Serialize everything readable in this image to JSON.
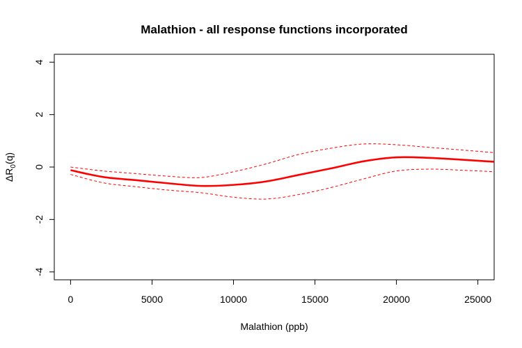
{
  "chart_data": {
    "type": "line",
    "title": "Malathion - all response functions incorporated",
    "xlabel": "Malathion (ppb)",
    "ylabel": "ΔR0(q)",
    "ylabel_main": "ΔR",
    "ylabel_sub": "0",
    "ylabel_tail": "(q)",
    "xlim": [
      -1000,
      26000
    ],
    "ylim": [
      -4.3,
      4.3
    ],
    "x_ticks": [
      0,
      5000,
      10000,
      15000,
      20000,
      25000
    ],
    "x_tick_labels": [
      "0",
      "5000",
      "10000",
      "15000",
      "20000",
      "25000"
    ],
    "y_ticks": [
      -4,
      -2,
      0,
      2,
      4
    ],
    "y_tick_labels": [
      "-4",
      "-2",
      "0",
      "2",
      "4"
    ],
    "grid": false,
    "series": [
      {
        "role": "estimate",
        "style": "solid",
        "color": "#ff0000",
        "x": [
          0,
          2000,
          4000,
          6000,
          8000,
          10000,
          12000,
          14000,
          16000,
          18000,
          20000,
          22000,
          24000,
          26000
        ],
        "y": [
          -0.12,
          -0.38,
          -0.5,
          -0.62,
          -0.72,
          -0.68,
          -0.55,
          -0.3,
          -0.05,
          0.22,
          0.37,
          0.35,
          0.28,
          0.2
        ]
      },
      {
        "role": "upper bound",
        "style": "dashed",
        "color": "#ff0000",
        "x": [
          0,
          2000,
          4000,
          6000,
          8000,
          10000,
          12000,
          14000,
          16000,
          18000,
          20000,
          22000,
          24000,
          26000
        ],
        "y": [
          0.0,
          -0.15,
          -0.25,
          -0.35,
          -0.4,
          -0.18,
          0.12,
          0.48,
          0.72,
          0.88,
          0.85,
          0.75,
          0.65,
          0.55
        ]
      },
      {
        "role": "lower bound",
        "style": "dashed",
        "color": "#ff0000",
        "x": [
          0,
          2000,
          4000,
          6000,
          8000,
          10000,
          12000,
          14000,
          16000,
          18000,
          20000,
          22000,
          24000,
          26000
        ],
        "y": [
          -0.28,
          -0.6,
          -0.75,
          -0.88,
          -0.98,
          -1.15,
          -1.22,
          -1.05,
          -0.78,
          -0.45,
          -0.15,
          -0.08,
          -0.12,
          -0.18
        ]
      }
    ]
  }
}
